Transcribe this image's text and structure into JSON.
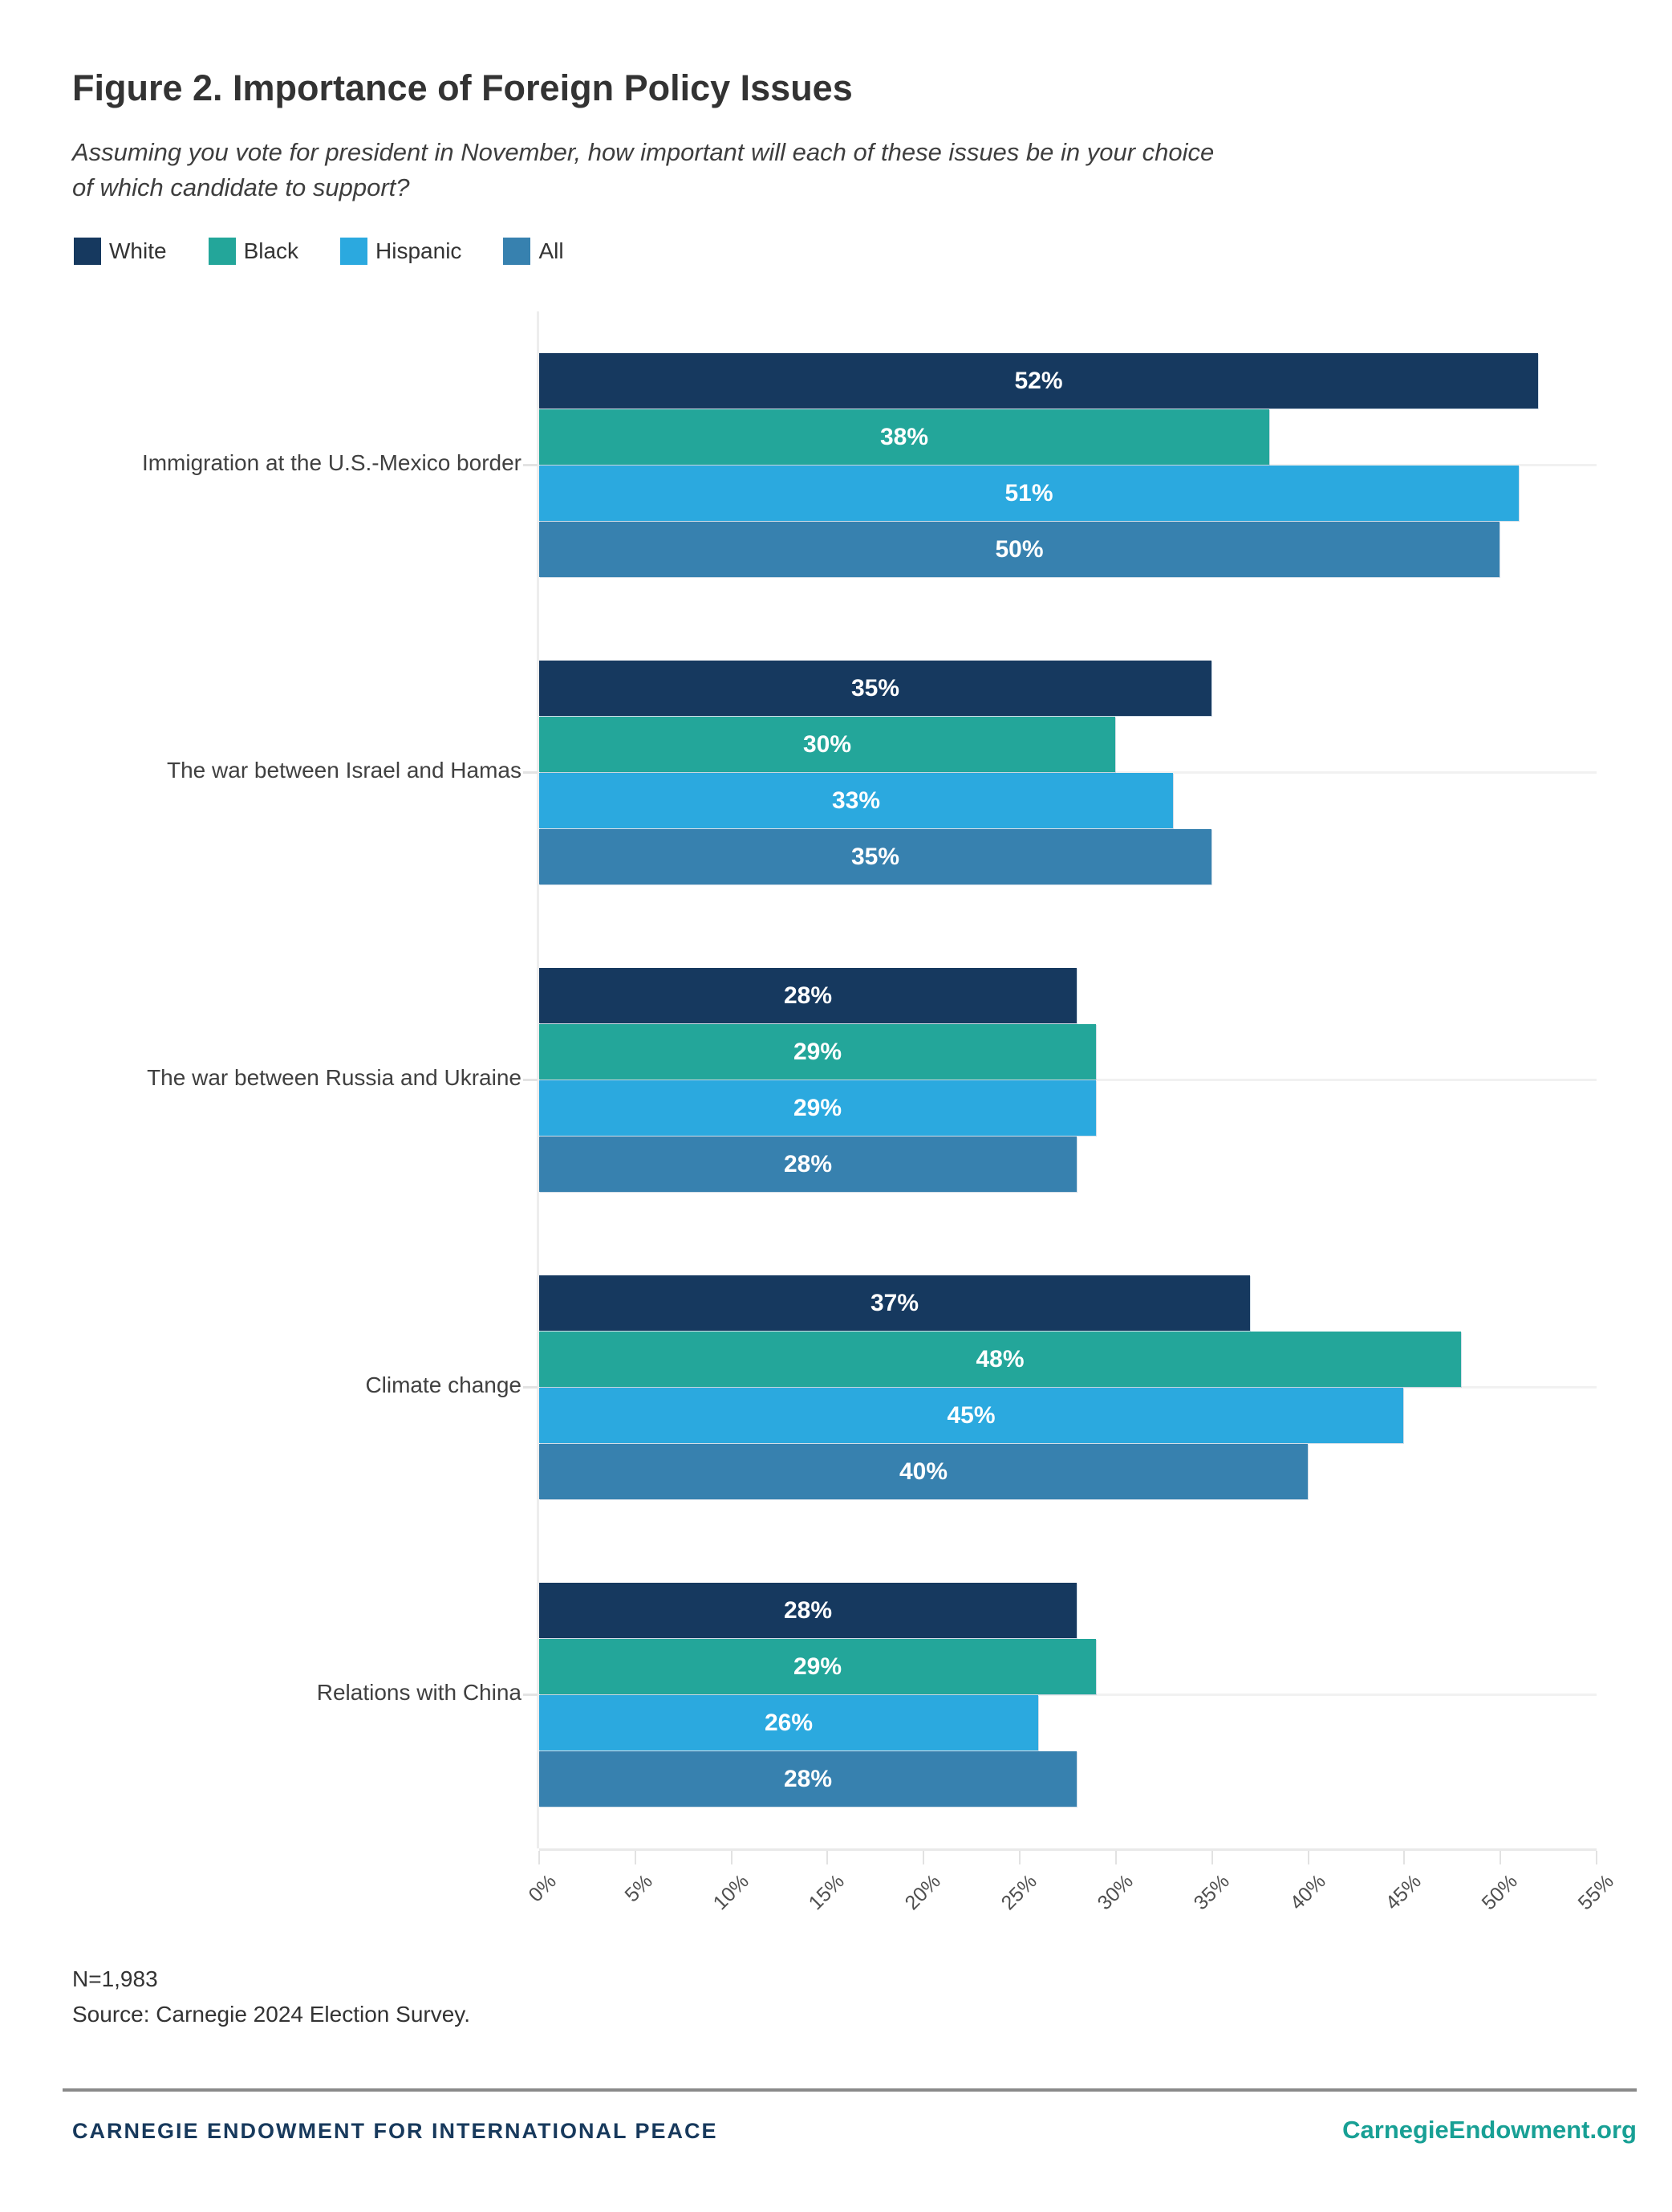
{
  "header": {
    "title": "Figure 2. Importance of Foreign Policy Issues",
    "subtitle_line1": "Assuming you vote for president in November, how important will each of these issues be in your choice",
    "subtitle_line2": "of which candidate to support?"
  },
  "chart_data": {
    "type": "bar",
    "orientation": "horizontal",
    "title": "Figure 2. Importance of Foreign Policy Issues",
    "categories": [
      "Immigration at the U.S.-Mexico border",
      "The war between Israel and Hamas",
      "The war between Russia and Ukraine",
      "Climate change",
      "Relations with China"
    ],
    "series": [
      {
        "name": "White",
        "color": "#16395f",
        "values": [
          52,
          35,
          28,
          37,
          28
        ]
      },
      {
        "name": "Black",
        "color": "#23a69a",
        "values": [
          38,
          30,
          29,
          48,
          29
        ]
      },
      {
        "name": "Hispanic",
        "color": "#2ba9df",
        "values": [
          51,
          33,
          29,
          45,
          26
        ]
      },
      {
        "name": "All",
        "color": "#3781af",
        "values": [
          50,
          35,
          28,
          40,
          28
        ]
      }
    ],
    "value_suffix": "%",
    "x_ticks": [
      "0%",
      "5%",
      "10%",
      "15%",
      "20%",
      "25%",
      "30%",
      "35%",
      "40%",
      "45%",
      "50%",
      "55%"
    ],
    "xlim": [
      0,
      55
    ],
    "xlabel": "",
    "ylabel": "",
    "grid": "horizontal-category-gridlines",
    "legend_position": "top-left",
    "bar_label_color": "#ffffff"
  },
  "notes": {
    "sample_size": "N=1,983",
    "source": "Source: Carnegie 2024 Election Survey."
  },
  "footer": {
    "organization": "CARNEGIE ENDOWMENT FOR INTERNATIONAL PEACE",
    "website": "CarnegieEndowment.org"
  },
  "colors": {
    "title_text": "#333333",
    "axis_line": "#ededed",
    "gridline": "#f1f1f1",
    "footer_brand_navy": "#17395c",
    "footer_brand_teal": "#18a095"
  }
}
